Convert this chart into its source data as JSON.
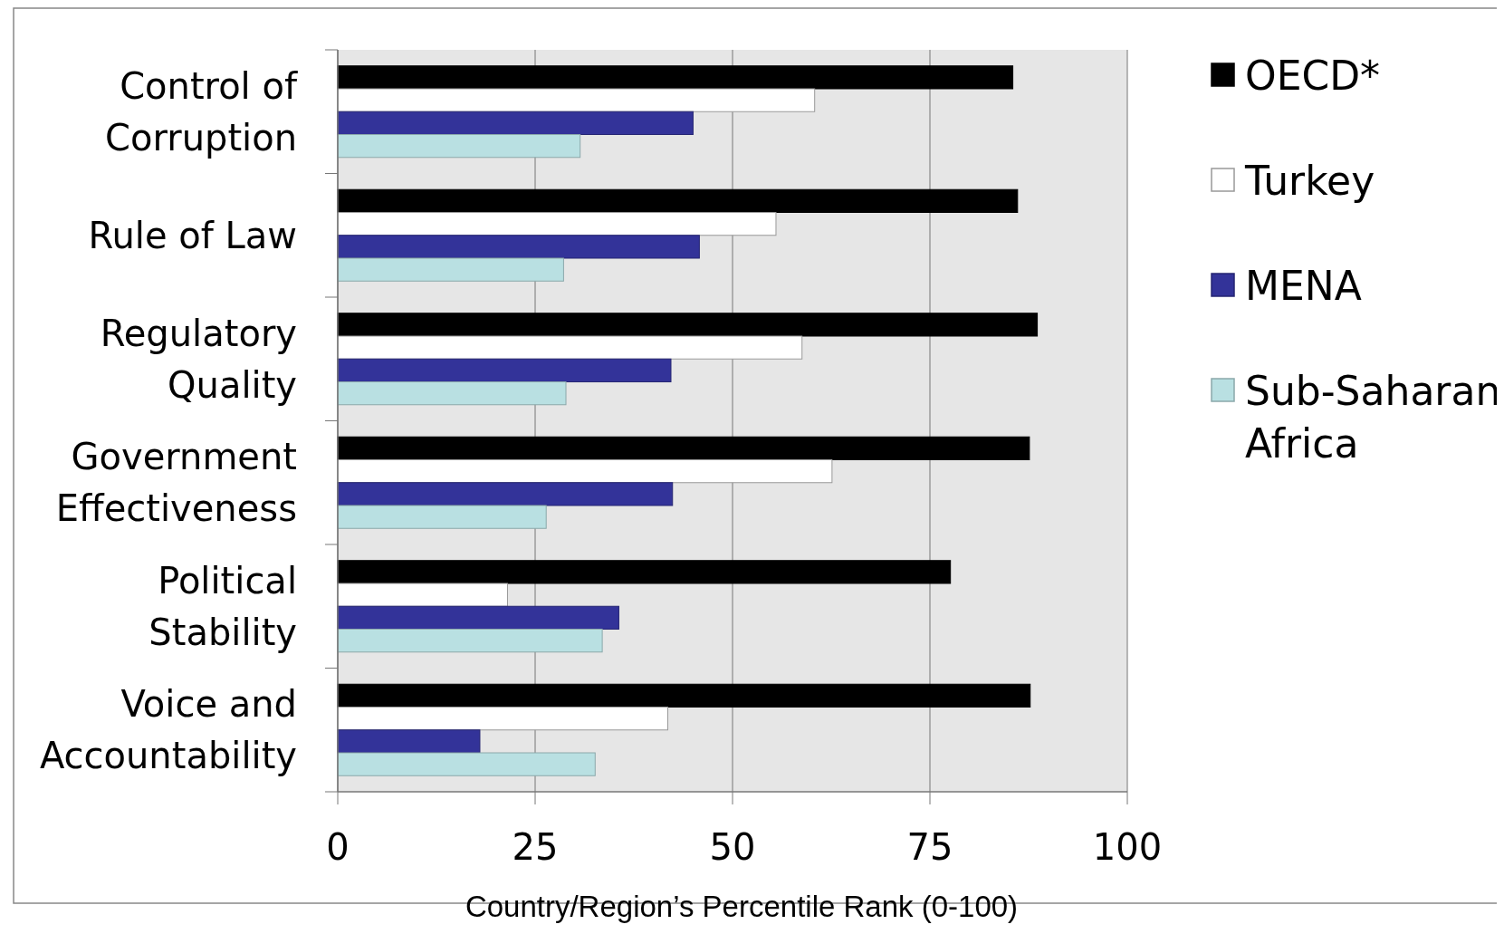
{
  "chart_data": {
    "type": "bar",
    "orientation": "horizontal",
    "xlabel": "Country/Region’s Percentile Rank (0-100)",
    "categories": [
      "Control of Corruption",
      "Rule of Law",
      "Regulatory Quality",
      "Government Effectiveness",
      "Political Stability",
      "Voice and Accountability"
    ],
    "series": [
      {
        "name": "OECD*",
        "color": "#000000",
        "values": [
          85.5,
          86.1,
          88.6,
          87.6,
          77.6,
          87.7
        ]
      },
      {
        "name": "Turkey",
        "color": "#ffffff",
        "values": [
          60.4,
          55.5,
          58.8,
          62.6,
          21.5,
          41.8
        ]
      },
      {
        "name": "MENA",
        "color": "#333399",
        "values": [
          45.0,
          45.8,
          42.2,
          42.4,
          35.6,
          18.0
        ]
      },
      {
        "name": "Sub-Saharan Africa",
        "color": "#b9e0e2",
        "values": [
          30.7,
          28.6,
          28.9,
          26.4,
          33.5,
          32.6
        ]
      }
    ],
    "xlim": [
      0,
      100
    ],
    "xticks": [
      0,
      25,
      50,
      75,
      100
    ],
    "grid": "x",
    "legend": "right"
  }
}
